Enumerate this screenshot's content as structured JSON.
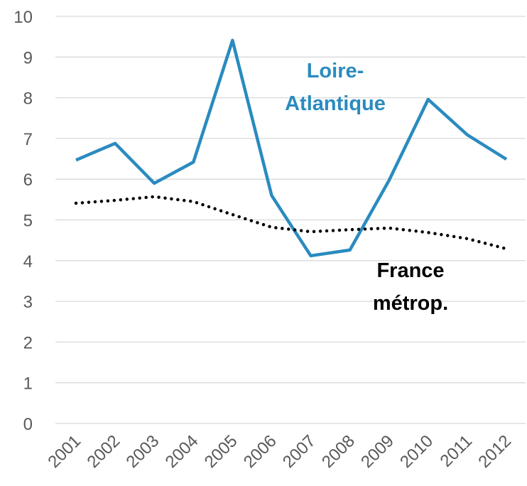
{
  "chart_data": {
    "type": "line",
    "categories": [
      "2001",
      "2002",
      "2003",
      "2004",
      "2005",
      "2006",
      "2007",
      "2008",
      "2009",
      "2010",
      "2011",
      "2012"
    ],
    "series": [
      {
        "name": "Loire-Atlantique",
        "color": "#2a8bbf",
        "style": "solid",
        "values": [
          6.47,
          6.88,
          5.9,
          6.42,
          9.41,
          5.6,
          4.12,
          4.26,
          5.97,
          7.96,
          7.09,
          6.49
        ]
      },
      {
        "name": "France métrop.",
        "color": "#000000",
        "style": "dotted",
        "values": [
          5.41,
          5.48,
          5.57,
          5.45,
          5.13,
          4.82,
          4.71,
          4.76,
          4.8,
          4.69,
          4.54,
          4.29
        ]
      }
    ],
    "ylim": [
      0,
      10
    ],
    "yticks": [
      0,
      1,
      2,
      3,
      4,
      5,
      6,
      7,
      8,
      9,
      10
    ],
    "grid": true
  }
}
